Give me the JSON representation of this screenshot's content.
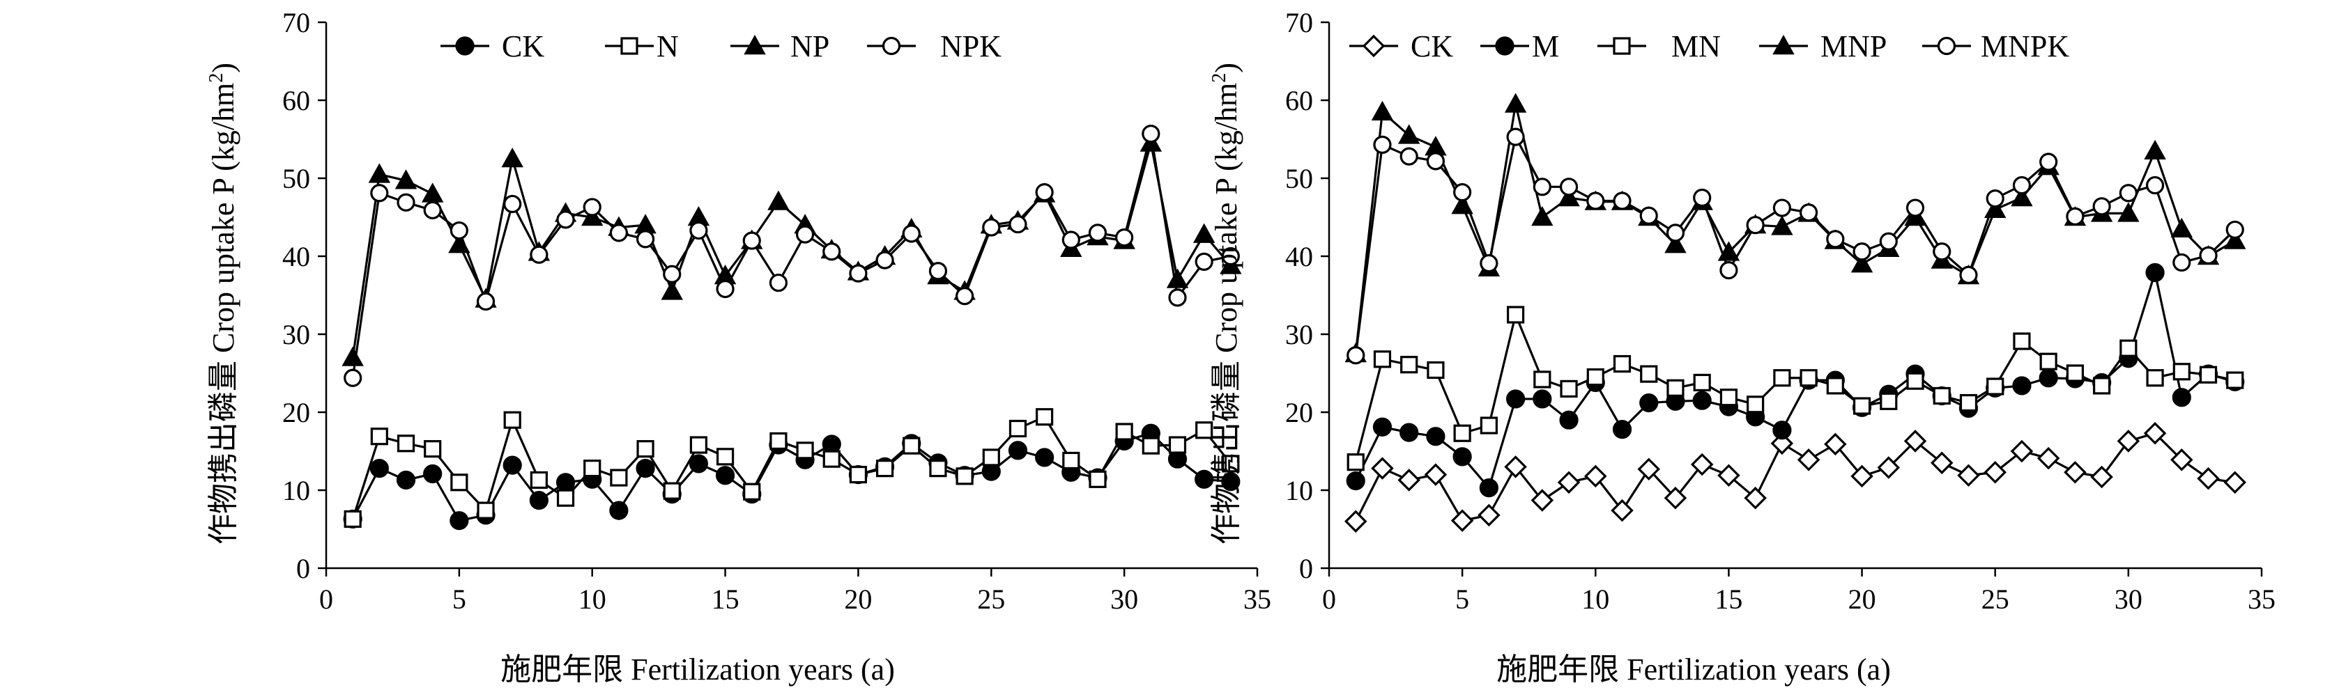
{
  "chart_data": [
    {
      "type": "line",
      "panel": "left",
      "xlabel": "施肥年限 Fertilization years (a)",
      "ylabel": "作物携出磷量 Crop uptake P (kg/hm²)",
      "ylabel_cn": "作物携出磷量",
      "ylabel_en": "Crop uptake P (kg/hm",
      "ylabel_sup": "2",
      "ylabel_end": ")",
      "xlim": [
        0,
        35
      ],
      "ylim": [
        0,
        70
      ],
      "xticks": [
        0,
        5,
        10,
        15,
        20,
        25,
        30,
        35
      ],
      "yticks": [
        0,
        10,
        20,
        30,
        40,
        50,
        60,
        70
      ],
      "legend_position": "top",
      "series": [
        {
          "name": "CK",
          "marker": "filled-circle",
          "values": [
            6.3,
            12.8,
            11.3,
            12.1,
            6.1,
            6.8,
            13.2,
            8.7,
            11.0,
            11.4,
            7.4,
            12.8,
            9.5,
            13.4,
            11.9,
            9.5,
            15.8,
            13.9,
            15.9,
            12.0,
            13.0,
            16.0,
            13.5,
            11.9,
            12.4,
            15.1,
            14.2,
            12.3,
            11.6,
            16.3,
            17.3,
            14.0,
            11.4,
            11.1
          ]
        },
        {
          "name": "N",
          "marker": "open-square",
          "values": [
            6.3,
            16.9,
            16.0,
            15.3,
            11.0,
            7.4,
            19.0,
            11.3,
            9.0,
            12.8,
            11.6,
            15.3,
            9.9,
            15.8,
            14.3,
            9.8,
            16.3,
            15.1,
            14.0,
            12.0,
            12.8,
            15.7,
            12.8,
            11.8,
            14.2,
            17.9,
            19.4,
            13.8,
            11.4,
            17.5,
            15.7,
            15.8,
            17.7,
            13.4
          ]
        },
        {
          "name": "NP",
          "marker": "filled-triangle",
          "values": [
            27.0,
            50.5,
            49.7,
            48.0,
            41.5,
            34.5,
            52.5,
            40.5,
            45.5,
            45.0,
            43.7,
            44.0,
            35.5,
            45.0,
            37.5,
            42.0,
            47.0,
            44.0,
            40.8,
            38.0,
            40.0,
            43.5,
            37.5,
            35.5,
            44.0,
            44.5,
            48.0,
            41.0,
            42.5,
            42.0,
            54.5,
            37.0,
            42.8,
            38.8
          ]
        },
        {
          "name": "NPK",
          "marker": "open-circle",
          "values": [
            24.4,
            48.1,
            46.9,
            45.9,
            43.3,
            34.2,
            46.7,
            40.2,
            44.7,
            46.3,
            43.0,
            42.2,
            37.7,
            43.3,
            35.8,
            42.0,
            36.6,
            42.8,
            40.6,
            37.8,
            39.5,
            42.9,
            38.1,
            34.9,
            43.7,
            44.1,
            48.2,
            42.1,
            43.0,
            42.4,
            55.7,
            34.7,
            39.3,
            40.0
          ]
        }
      ]
    },
    {
      "type": "line",
      "panel": "right",
      "xlabel": "施肥年限 Fertilization years (a)",
      "ylabel": "作物携出磷量 Crop uptake P (kg/hm²)",
      "ylabel_cn": "作物携出磷量",
      "ylabel_en": "Crop uptake P (kg/hm",
      "ylabel_sup": "2",
      "ylabel_end": ")",
      "xlim": [
        0,
        35
      ],
      "ylim": [
        0,
        70
      ],
      "xticks": [
        0,
        5,
        10,
        15,
        20,
        25,
        30,
        35
      ],
      "yticks": [
        0,
        10,
        20,
        30,
        40,
        50,
        60,
        70
      ],
      "legend_position": "top",
      "series": [
        {
          "name": "CK",
          "marker": "open-diamond",
          "values": [
            6.0,
            12.8,
            11.3,
            12.0,
            6.1,
            6.8,
            13.0,
            8.7,
            11.0,
            11.8,
            7.4,
            12.7,
            9.0,
            13.3,
            11.9,
            9.0,
            16.0,
            13.9,
            15.9,
            11.8,
            12.9,
            16.3,
            13.5,
            11.9,
            12.3,
            15.0,
            14.1,
            12.3,
            11.7,
            16.3,
            17.3,
            13.9,
            11.5,
            11.0
          ]
        },
        {
          "name": "M",
          "marker": "filled-circle",
          "values": [
            11.2,
            18.1,
            17.4,
            16.9,
            14.3,
            10.3,
            21.7,
            21.7,
            19.0,
            23.8,
            17.8,
            21.2,
            21.4,
            21.5,
            20.7,
            19.4,
            17.7,
            24.1,
            24.1,
            20.6,
            22.3,
            24.9,
            22.1,
            20.5,
            23.1,
            23.4,
            24.4,
            24.3,
            23.8,
            26.9,
            37.9,
            21.9,
            24.9,
            23.9
          ]
        },
        {
          "name": "MN",
          "marker": "open-square",
          "values": [
            13.6,
            26.8,
            26.1,
            25.4,
            17.3,
            18.3,
            32.5,
            24.2,
            23.0,
            24.5,
            26.2,
            24.9,
            23.1,
            23.8,
            21.9,
            21.0,
            24.4,
            24.4,
            23.4,
            20.8,
            21.4,
            24.0,
            22.1,
            21.2,
            23.3,
            29.1,
            26.5,
            25.0,
            23.4,
            28.2,
            24.4,
            25.2,
            24.8,
            24.1
          ]
        },
        {
          "name": "MNP",
          "marker": "filled-triangle",
          "values": [
            27.5,
            58.5,
            55.5,
            54.0,
            46.5,
            38.5,
            59.5,
            45.0,
            47.5,
            47.0,
            47.0,
            45.0,
            41.5,
            47.0,
            40.5,
            44.0,
            43.8,
            45.5,
            42.0,
            39.0,
            41.0,
            45.0,
            39.5,
            37.5,
            46.0,
            47.5,
            51.5,
            45.0,
            45.5,
            45.5,
            53.5,
            43.5,
            40.0,
            42.0
          ]
        },
        {
          "name": "MNPK",
          "marker": "open-circle",
          "values": [
            27.3,
            54.3,
            52.8,
            52.2,
            48.2,
            39.1,
            55.3,
            48.9,
            48.9,
            47.1,
            47.1,
            45.2,
            43.0,
            47.5,
            38.2,
            44.0,
            46.2,
            45.6,
            42.2,
            40.6,
            41.9,
            46.2,
            40.6,
            37.6,
            47.4,
            49.1,
            52.1,
            45.1,
            46.4,
            48.1,
            49.1,
            39.2,
            40.1,
            43.4
          ]
        }
      ]
    }
  ]
}
